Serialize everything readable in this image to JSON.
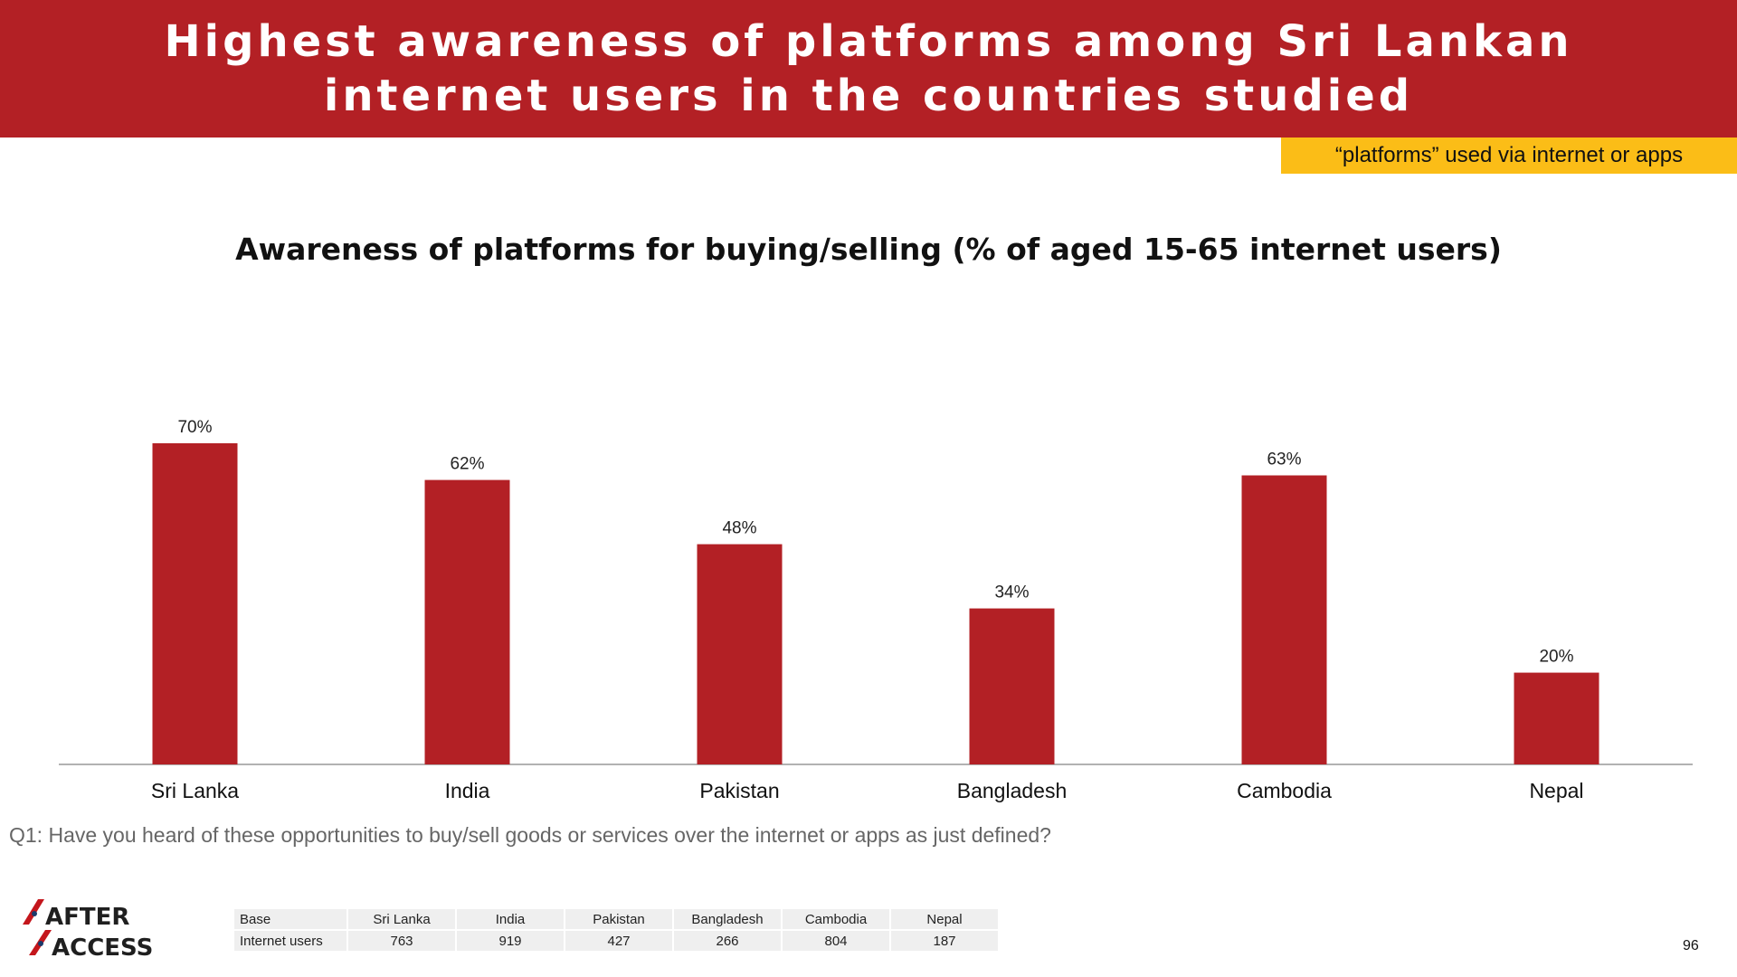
{
  "header": {
    "title": "Highest awareness of platforms among Sri Lankan internet users in the countries studied"
  },
  "tagline": "“platforms” used via internet or apps",
  "chart_data": {
    "type": "bar",
    "title": "Awareness of platforms for buying/selling (% of aged 15-65 internet users)",
    "categories": [
      "Sri Lanka",
      "India",
      "Pakistan",
      "Bangladesh",
      "Cambodia",
      "Nepal"
    ],
    "values": [
      70,
      62,
      48,
      34,
      63,
      20
    ],
    "value_labels": [
      "70%",
      "62%",
      "48%",
      "34%",
      "63%",
      "20%"
    ],
    "ylim": [
      0,
      70
    ],
    "bar_color": "#b32025",
    "grid": false,
    "legend": "none"
  },
  "question": "Q1: Have you heard of these opportunities to buy/sell goods or services over the internet or apps as just defined?",
  "logo": {
    "line1": "AFTER",
    "line2": "ACCESS"
  },
  "base_table": {
    "header": [
      "Base",
      "Sri Lanka",
      "India",
      "Pakistan",
      "Bangladesh",
      "Cambodia",
      "Nepal"
    ],
    "row": [
      "Internet users",
      "763",
      "919",
      "427",
      "266",
      "804",
      "187"
    ]
  },
  "page_number": "96",
  "colors": {
    "header_bg": "#b32025",
    "tagline_bg": "#fbbd17",
    "table_bg": "#efefef"
  }
}
